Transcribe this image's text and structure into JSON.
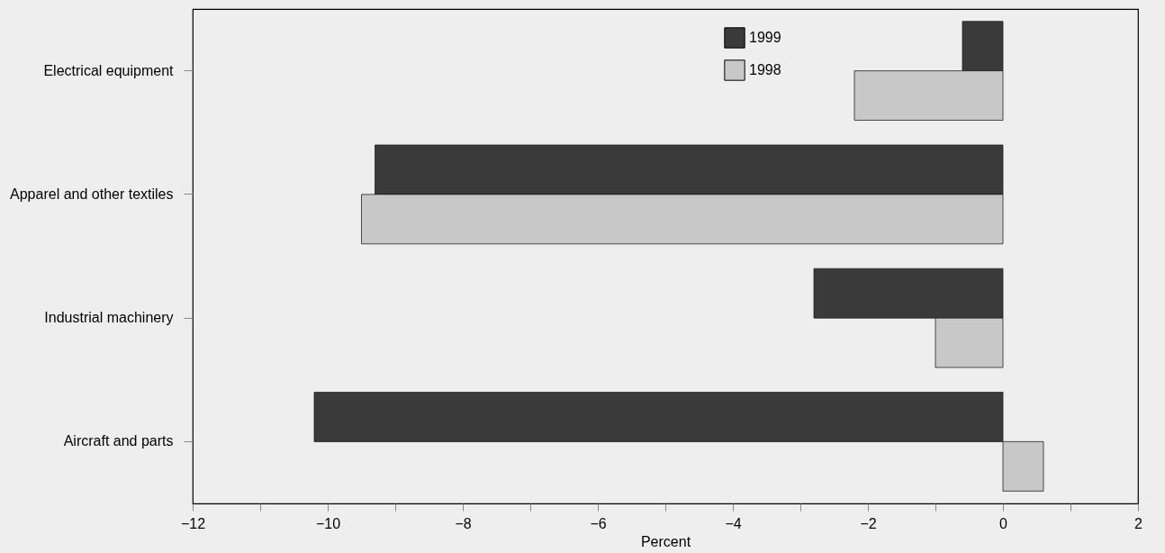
{
  "chart_data": {
    "type": "bar",
    "orientation": "horizontal",
    "xlabel": "Percent",
    "categories": [
      "Electrical equipment",
      "Apparel and other textiles",
      "Industrial machinery",
      "Aircraft and parts"
    ],
    "series": [
      {
        "name": "1999",
        "color": "#3a3a3a",
        "values": [
          -0.6,
          -9.3,
          -2.8,
          -10.2
        ]
      },
      {
        "name": "1998",
        "color": "#c8c8c8",
        "values": [
          -2.2,
          -9.5,
          -1.0,
          0.6
        ]
      }
    ],
    "xlim": [
      -12,
      2
    ],
    "xticks": [
      -12,
      {
        "value": -11,
        "label": null
      },
      -10,
      {
        "value": -9,
        "label": null
      },
      -8,
      {
        "value": -7,
        "label": null
      },
      -6,
      {
        "value": -5,
        "label": null
      },
      -4,
      {
        "value": -3,
        "label": null
      },
      -2,
      {
        "value": -1,
        "label": null
      },
      0,
      {
        "value": 1,
        "label": null
      },
      2
    ],
    "grid": false,
    "legend": "top"
  }
}
